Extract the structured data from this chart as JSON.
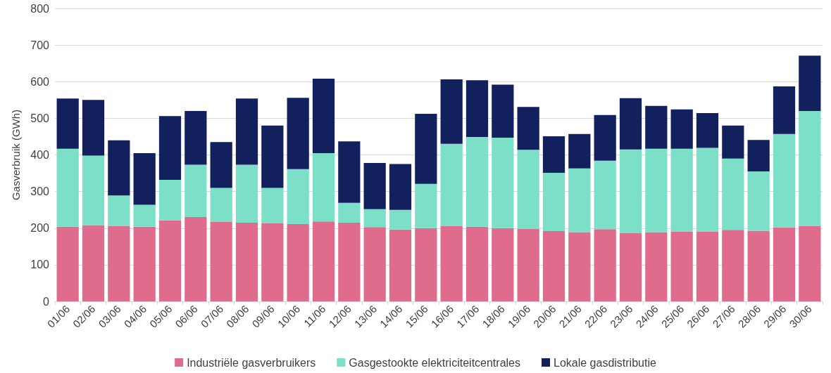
{
  "chart_data": {
    "type": "bar",
    "stacked": true,
    "ylabel": "Gasverbruik (GWh)",
    "categories": [
      "01/06",
      "02/06",
      "03/06",
      "04/06",
      "05/06",
      "06/06",
      "07/06",
      "08/06",
      "09/06",
      "10/06",
      "11/06",
      "12/06",
      "13/06",
      "14/06",
      "15/06",
      "16/06",
      "17/06",
      "18/06",
      "19/06",
      "20/06",
      "21/06",
      "22/06",
      "23/06",
      "24/06",
      "25/06",
      "26/06",
      "27/06",
      "28/06",
      "29/06",
      "30/06"
    ],
    "series": [
      {
        "name": "Industriële gasverbruikers",
        "color": "#df6c8c",
        "values": [
          204,
          208,
          206,
          204,
          221,
          230,
          217,
          215,
          213,
          211,
          218,
          215,
          203,
          196,
          200,
          206,
          204,
          200,
          198,
          192,
          189,
          197,
          187,
          189,
          191,
          191,
          195,
          193,
          202,
          206
        ]
      },
      {
        "name": "Gasgestookte elektriciteitcentrales",
        "color": "#7be0c7",
        "values": [
          213,
          190,
          83,
          60,
          111,
          143,
          93,
          158,
          97,
          150,
          187,
          54,
          49,
          54,
          121,
          224,
          245,
          247,
          216,
          159,
          174,
          187,
          228,
          228,
          226,
          228,
          195,
          162,
          255,
          314
        ]
      },
      {
        "name": "Lokale gasdistributie",
        "color": "#13205e",
        "values": [
          137,
          152,
          151,
          141,
          174,
          147,
          125,
          181,
          170,
          195,
          203,
          168,
          126,
          125,
          191,
          176,
          155,
          145,
          117,
          100,
          94,
          125,
          140,
          117,
          107,
          95,
          90,
          86,
          130,
          151
        ]
      }
    ],
    "ylim": [
      0,
      800
    ],
    "yticks": [
      0,
      100,
      200,
      300,
      400,
      500,
      600,
      700,
      800
    ],
    "grid": "y",
    "legend": "bottom"
  }
}
